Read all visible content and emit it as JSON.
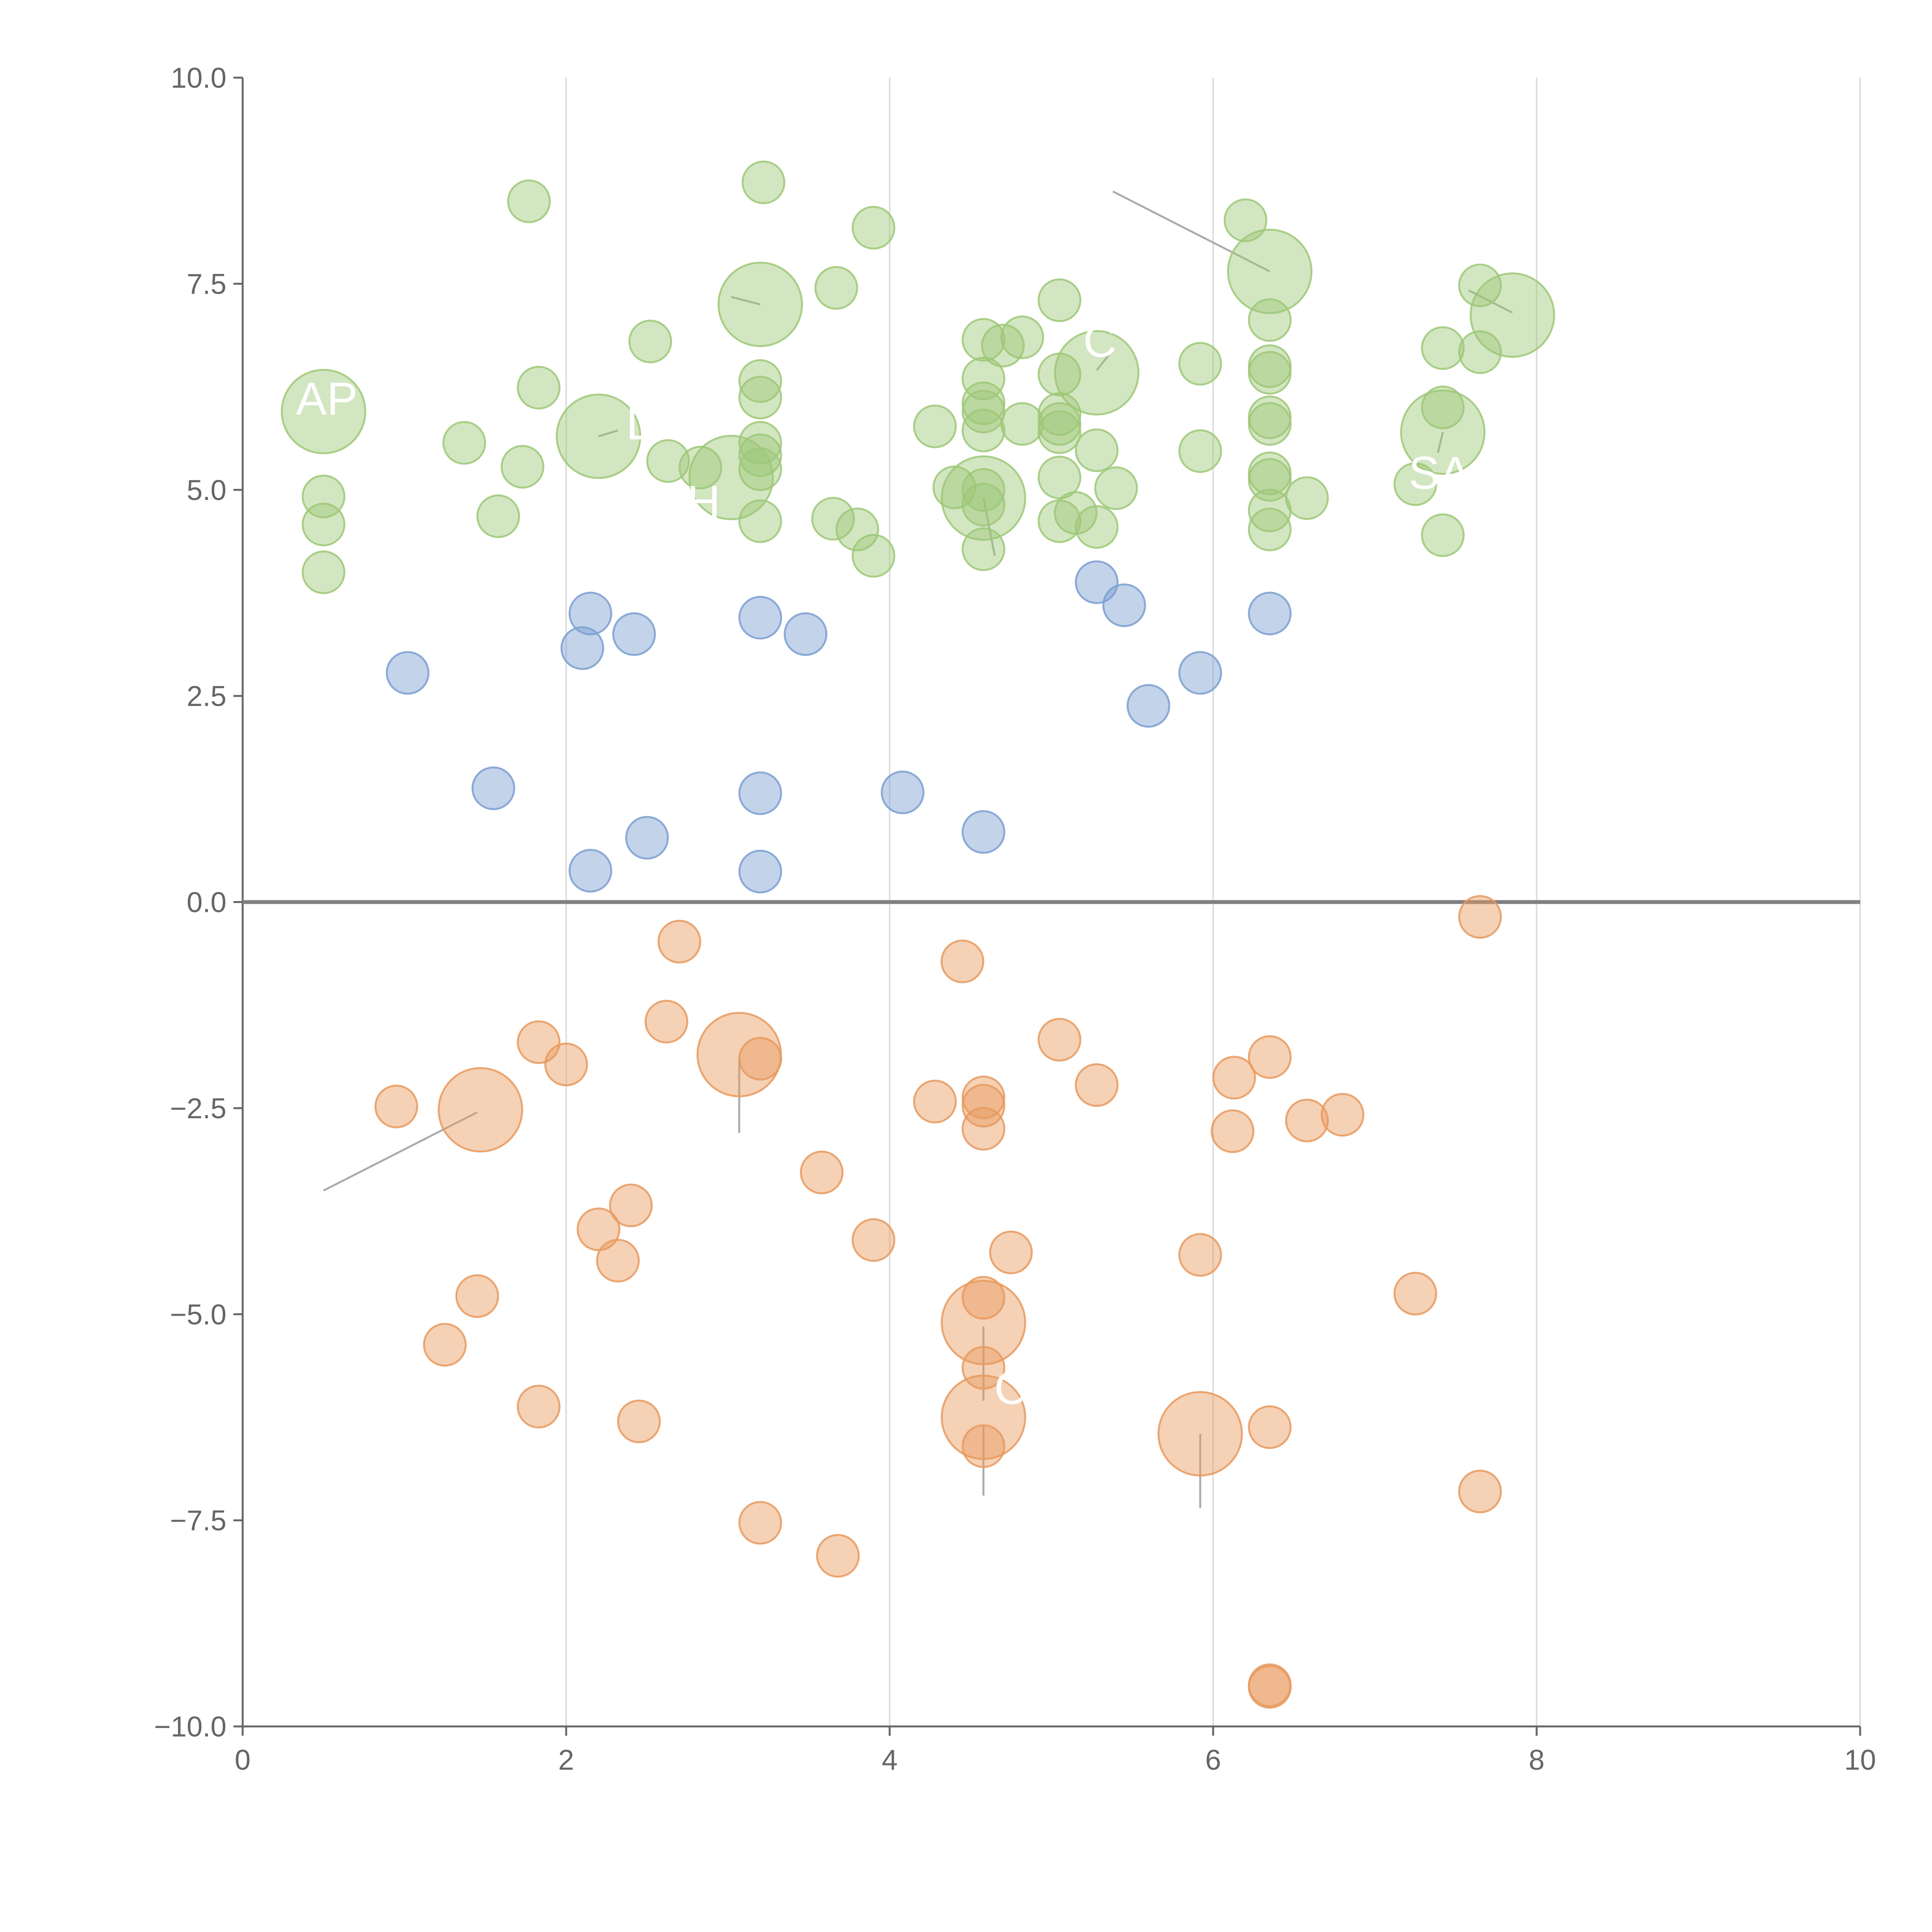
{
  "chart_data": {
    "type": "scatter",
    "title": "",
    "xlabel": "",
    "ylabel": "",
    "xlim": [
      0,
      10
    ],
    "ylim": [
      -10,
      10
    ],
    "x_ticks": [
      0,
      2,
      4,
      6,
      8,
      10
    ],
    "x_tick_labels": [
      "0",
      "2",
      "4",
      "6",
      "8",
      "10"
    ],
    "y_ticks": [
      -10,
      -7.5,
      -5,
      -2.5,
      0,
      2.5,
      5,
      7.5,
      10
    ],
    "y_tick_labels": [
      "−10.0",
      "−7.5",
      "−5.0",
      "−2.5",
      "0.0",
      "2.5",
      "5.0",
      "7.5",
      "10.0"
    ],
    "vertical_grid": true,
    "horizontal_grid": false,
    "zero_line": true,
    "legend": "none",
    "colors": {
      "green": "#9dc878",
      "blue": "#7b9fd1",
      "orange": "#e89a5e",
      "axis": "#666666",
      "grid": "#dddddd",
      "zero_line": "#808080",
      "leader": "#aaaaaa"
    },
    "labels": [
      {
        "text": "AP",
        "x": 0.52,
        "y": 6.1,
        "group": "green"
      },
      {
        "text": "L",
        "x": 2.45,
        "y": 5.8,
        "group": "green"
      },
      {
        "text": "H",
        "x": 2.85,
        "y": 4.85,
        "group": "green"
      },
      {
        "text": "C",
        "x": 5.3,
        "y": 6.8,
        "group": "green"
      },
      {
        "text": "SA",
        "x": 7.4,
        "y": 5.2,
        "group": "green"
      },
      {
        "text": "C",
        "x": 4.75,
        "y": -5.9,
        "group": "orange"
      }
    ],
    "leaders": [
      [
        3.2,
        7.25,
        3.02,
        7.34
      ],
      [
        2.2,
        5.65,
        2.32,
        5.72
      ],
      [
        6.35,
        7.65,
        5.38,
        8.62
      ],
      [
        7.85,
        7.15,
        7.58,
        7.42
      ],
      [
        5.28,
        6.45,
        5.38,
        6.7
      ],
      [
        7.42,
        5.7,
        7.39,
        5.45
      ],
      [
        4.58,
        4.9,
        4.65,
        4.2
      ],
      [
        1.45,
        -2.55,
        0.5,
        -3.5
      ],
      [
        3.07,
        -1.9,
        3.07,
        -2.8
      ],
      [
        4.58,
        -5.15,
        4.58,
        -6.05
      ],
      [
        4.58,
        -6.35,
        4.58,
        -7.2
      ],
      [
        5.92,
        -6.45,
        5.92,
        -7.35
      ]
    ],
    "series": [
      {
        "color": "green",
        "points": [
          [
            1.77,
            8.5,
            1
          ],
          [
            3.22,
            8.73,
            1
          ],
          [
            3.9,
            8.18,
            1
          ],
          [
            6.2,
            8.27,
            1
          ],
          [
            6.35,
            7.65,
            2.5
          ],
          [
            3.2,
            7.25,
            2.5
          ],
          [
            3.67,
            7.45,
            1
          ],
          [
            7.65,
            7.48,
            1
          ],
          [
            7.85,
            7.12,
            2.5
          ],
          [
            5.05,
            7.3,
            1
          ],
          [
            6.35,
            7.06,
            1
          ],
          [
            2.52,
            6.8,
            1
          ],
          [
            4.58,
            6.82,
            1
          ],
          [
            4.7,
            6.75,
            1
          ],
          [
            4.82,
            6.85,
            1
          ],
          [
            7.42,
            6.72,
            1
          ],
          [
            7.65,
            6.67,
            1
          ],
          [
            5.92,
            6.53,
            1
          ],
          [
            6.35,
            6.5,
            1
          ],
          [
            6.35,
            6.42,
            1
          ],
          [
            5.05,
            6.4,
            1
          ],
          [
            5.28,
            6.42,
            2.5
          ],
          [
            3.2,
            6.32,
            1
          ],
          [
            4.58,
            6.35,
            1
          ],
          [
            1.83,
            6.24,
            1
          ],
          [
            3.2,
            6.12,
            1
          ],
          [
            4.58,
            6.05,
            1
          ],
          [
            4.58,
            5.95,
            1
          ],
          [
            7.42,
            6.0,
            1
          ],
          [
            0.5,
            5.95,
            2.5
          ],
          [
            6.35,
            5.88,
            1
          ],
          [
            6.35,
            5.8,
            1
          ],
          [
            5.05,
            5.92,
            1
          ],
          [
            5.05,
            5.8,
            1
          ],
          [
            4.82,
            5.8,
            1
          ],
          [
            4.28,
            5.77,
            1
          ],
          [
            4.58,
            5.72,
            1
          ],
          [
            5.05,
            5.7,
            1
          ],
          [
            7.42,
            5.7,
            2.5
          ],
          [
            2.2,
            5.65,
            2.5
          ],
          [
            1.37,
            5.57,
            1
          ],
          [
            3.2,
            5.57,
            1
          ],
          [
            5.92,
            5.47,
            1
          ],
          [
            3.2,
            5.42,
            1
          ],
          [
            5.28,
            5.48,
            1
          ],
          [
            2.63,
            5.35,
            1
          ],
          [
            2.83,
            5.27,
            1
          ],
          [
            1.73,
            5.28,
            1
          ],
          [
            3.2,
            5.25,
            1
          ],
          [
            6.35,
            5.2,
            1
          ],
          [
            6.35,
            5.12,
            1
          ],
          [
            3.02,
            5.15,
            2.5
          ],
          [
            5.05,
            5.15,
            1
          ],
          [
            7.25,
            5.07,
            1
          ],
          [
            4.4,
            5.03,
            1
          ],
          [
            5.4,
            5.02,
            1
          ],
          [
            0.5,
            4.92,
            1
          ],
          [
            4.58,
            5.0,
            1
          ],
          [
            4.58,
            4.9,
            2.5
          ],
          [
            6.58,
            4.9,
            1
          ],
          [
            4.58,
            4.82,
            1
          ],
          [
            6.35,
            4.75,
            1
          ],
          [
            5.15,
            4.72,
            1
          ],
          [
            1.58,
            4.68,
            1
          ],
          [
            3.65,
            4.65,
            1
          ],
          [
            3.2,
            4.62,
            1
          ],
          [
            5.05,
            4.62,
            1
          ],
          [
            0.5,
            4.58,
            1
          ],
          [
            5.28,
            4.55,
            1
          ],
          [
            6.35,
            4.52,
            1
          ],
          [
            3.8,
            4.52,
            1
          ],
          [
            7.42,
            4.45,
            1
          ],
          [
            4.58,
            4.28,
            1
          ],
          [
            3.9,
            4.2,
            1
          ],
          [
            0.5,
            4.0,
            1
          ]
        ]
      },
      {
        "color": "blue",
        "points": [
          [
            5.28,
            3.88,
            1
          ],
          [
            5.45,
            3.6,
            1
          ],
          [
            6.35,
            3.5,
            1
          ],
          [
            2.15,
            3.5,
            1
          ],
          [
            3.2,
            3.45,
            1
          ],
          [
            2.42,
            3.25,
            1
          ],
          [
            3.48,
            3.25,
            1
          ],
          [
            2.1,
            3.08,
            1
          ],
          [
            1.02,
            2.78,
            1
          ],
          [
            5.92,
            2.78,
            1
          ],
          [
            5.6,
            2.38,
            1
          ],
          [
            1.55,
            1.38,
            1
          ],
          [
            3.2,
            1.32,
            1
          ],
          [
            4.08,
            1.33,
            1
          ],
          [
            4.58,
            0.85,
            1
          ],
          [
            2.5,
            0.78,
            1
          ],
          [
            2.15,
            0.38,
            1
          ],
          [
            3.2,
            0.37,
            1
          ]
        ]
      },
      {
        "color": "orange",
        "points": [
          [
            7.65,
            -0.18,
            1
          ],
          [
            2.7,
            -0.48,
            1
          ],
          [
            4.45,
            -0.72,
            1
          ],
          [
            2.62,
            -1.45,
            1
          ],
          [
            1.83,
            -1.7,
            1
          ],
          [
            5.05,
            -1.67,
            1
          ],
          [
            3.07,
            -1.85,
            2.5
          ],
          [
            6.35,
            -1.88,
            1
          ],
          [
            3.2,
            -1.9,
            1
          ],
          [
            2.0,
            -1.97,
            1
          ],
          [
            6.13,
            -2.13,
            1
          ],
          [
            5.28,
            -2.22,
            1
          ],
          [
            4.28,
            -2.42,
            1
          ],
          [
            4.58,
            -2.37,
            1
          ],
          [
            4.58,
            -2.47,
            1
          ],
          [
            0.95,
            -2.48,
            1
          ],
          [
            1.47,
            -2.52,
            2.5
          ],
          [
            6.8,
            -2.58,
            1
          ],
          [
            6.58,
            -2.65,
            1
          ],
          [
            4.58,
            -2.75,
            1
          ],
          [
            6.12,
            -2.78,
            1
          ],
          [
            3.58,
            -3.28,
            1
          ],
          [
            2.4,
            -3.68,
            1
          ],
          [
            2.2,
            -3.97,
            1
          ],
          [
            3.9,
            -4.1,
            1
          ],
          [
            4.75,
            -4.25,
            1
          ],
          [
            5.92,
            -4.28,
            1
          ],
          [
            2.32,
            -4.35,
            1
          ],
          [
            7.25,
            -4.75,
            1
          ],
          [
            1.45,
            -4.78,
            1
          ],
          [
            4.58,
            -4.8,
            1
          ],
          [
            4.58,
            -5.1,
            2.5
          ],
          [
            1.25,
            -5.37,
            1
          ],
          [
            4.58,
            -5.65,
            1
          ],
          [
            1.83,
            -6.12,
            1
          ],
          [
            4.58,
            -6.25,
            2.5
          ],
          [
            2.45,
            -6.3,
            1
          ],
          [
            6.35,
            -6.37,
            1
          ],
          [
            5.92,
            -6.45,
            2.5
          ],
          [
            4.58,
            -6.6,
            1
          ],
          [
            7.65,
            -7.15,
            1
          ],
          [
            3.2,
            -7.53,
            1
          ],
          [
            3.68,
            -7.93,
            1
          ],
          [
            6.35,
            -9.52,
            1
          ],
          [
            6.35,
            -9.5,
            1
          ]
        ]
      }
    ]
  }
}
